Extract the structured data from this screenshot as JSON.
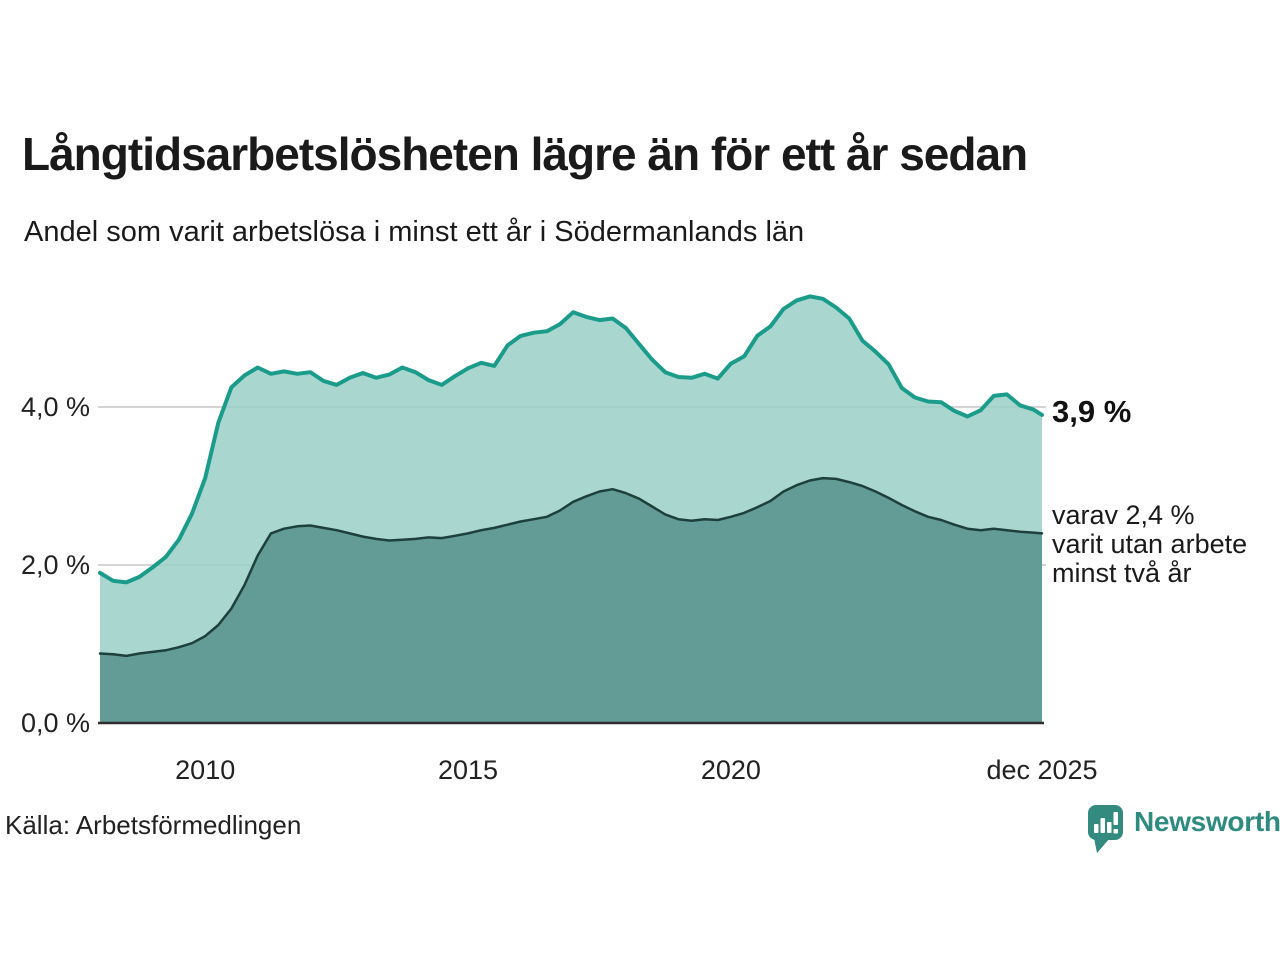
{
  "header": {
    "title": "Långtidsarbetslösheten lägre än för ett år sedan",
    "subtitle": "Andel som varit arbetslösa i minst ett år i Södermanlands län"
  },
  "annotations": {
    "latest_total": "3,9 %",
    "secondary_lines": [
      "varav 2,4 %",
      "varit utan arbete",
      "minst två år"
    ]
  },
  "footer": {
    "source": "Källa: Arbetsförmedlingen",
    "logo_text": "Newsworthy"
  },
  "colors": {
    "accent_teal": "#1b9c8b",
    "area_light_fill": "rgba(154,208,200,0.85)",
    "area_dark_fill": "rgba(91,150,144,0.9)",
    "dark_line": "#1e403d",
    "logo_teal": "#2f8b80",
    "text_dark": "#1a1a1a",
    "gridline": "#d4d4d4",
    "axis_line": "#2e2e2e"
  },
  "chart_data": {
    "type": "area",
    "title": "Andel som varit arbetslösa i minst ett år i Södermanlands län",
    "unit": "%",
    "grid": "horizontal",
    "legend_position": "right-annotations",
    "x_range": [
      2008.0,
      2025.9167
    ],
    "ylim": [
      0,
      5.6
    ],
    "x_ticks": [
      {
        "t": 2010.0,
        "label": "2010"
      },
      {
        "t": 2015.0,
        "label": "2015"
      },
      {
        "t": 2020.0,
        "label": "2020"
      },
      {
        "t": 2025.9167,
        "label": "dec 2025"
      }
    ],
    "y_ticks": [
      {
        "v": 0,
        "label": "0,0 %"
      },
      {
        "v": 2,
        "label": "2,0 %"
      },
      {
        "v": 4,
        "label": "4,0 %"
      }
    ],
    "x": [
      2008.0,
      2008.25,
      2008.5,
      2008.75,
      2009.0,
      2009.25,
      2009.5,
      2009.75,
      2010.0,
      2010.25,
      2010.5,
      2010.75,
      2011.0,
      2011.25,
      2011.5,
      2011.75,
      2012.0,
      2012.25,
      2012.5,
      2012.75,
      2013.0,
      2013.25,
      2013.5,
      2013.75,
      2014.0,
      2014.25,
      2014.5,
      2014.75,
      2015.0,
      2015.25,
      2015.5,
      2015.75,
      2016.0,
      2016.25,
      2016.5,
      2016.75,
      2017.0,
      2017.25,
      2017.5,
      2017.75,
      2018.0,
      2018.25,
      2018.5,
      2018.75,
      2019.0,
      2019.25,
      2019.5,
      2019.75,
      2020.0,
      2020.25,
      2020.5,
      2020.75,
      2021.0,
      2021.25,
      2021.5,
      2021.75,
      2022.0,
      2022.25,
      2022.5,
      2022.75,
      2023.0,
      2023.25,
      2023.5,
      2023.75,
      2024.0,
      2024.25,
      2024.5,
      2024.75,
      2025.0,
      2025.25,
      2025.5,
      2025.75,
      2025.9167
    ],
    "series": [
      {
        "name": "Andel arbetslösa minst ett år",
        "line_color": "#1b9c8b",
        "line_width": 4,
        "fill_color": "rgba(154,208,200,0.85)",
        "values": [
          1.9,
          1.8,
          1.78,
          1.85,
          1.97,
          2.1,
          2.32,
          2.65,
          3.1,
          3.8,
          4.25,
          4.4,
          4.5,
          4.42,
          4.45,
          4.42,
          4.44,
          4.33,
          4.28,
          4.37,
          4.43,
          4.37,
          4.41,
          4.5,
          4.44,
          4.34,
          4.28,
          4.39,
          4.49,
          4.56,
          4.52,
          4.78,
          4.9,
          4.94,
          4.96,
          5.05,
          5.2,
          5.14,
          5.1,
          5.12,
          5.0,
          4.8,
          4.6,
          4.44,
          4.38,
          4.37,
          4.42,
          4.36,
          4.55,
          4.64,
          4.9,
          5.02,
          5.24,
          5.35,
          5.4,
          5.37,
          5.26,
          5.12,
          4.84,
          4.7,
          4.54,
          4.24,
          4.12,
          4.07,
          4.06,
          3.95,
          3.88,
          3.96,
          4.14,
          4.16,
          4.02,
          3.97,
          3.9
        ]
      },
      {
        "name": "Andel utan arbete minst två år",
        "line_color": "#1e403d",
        "line_width": 2.5,
        "fill_color": "rgba(91,150,144,0.9)",
        "values": [
          0.88,
          0.87,
          0.85,
          0.88,
          0.9,
          0.92,
          0.96,
          1.01,
          1.1,
          1.24,
          1.45,
          1.75,
          2.12,
          2.4,
          2.46,
          2.49,
          2.5,
          2.47,
          2.44,
          2.4,
          2.36,
          2.33,
          2.31,
          2.32,
          2.33,
          2.35,
          2.34,
          2.37,
          2.4,
          2.44,
          2.47,
          2.51,
          2.55,
          2.58,
          2.61,
          2.69,
          2.8,
          2.87,
          2.93,
          2.96,
          2.91,
          2.84,
          2.74,
          2.64,
          2.58,
          2.56,
          2.58,
          2.57,
          2.61,
          2.66,
          2.73,
          2.81,
          2.93,
          3.01,
          3.07,
          3.1,
          3.09,
          3.05,
          3.0,
          2.93,
          2.85,
          2.76,
          2.68,
          2.61,
          2.57,
          2.51,
          2.46,
          2.44,
          2.46,
          2.44,
          2.42,
          2.41,
          2.4
        ]
      }
    ]
  }
}
